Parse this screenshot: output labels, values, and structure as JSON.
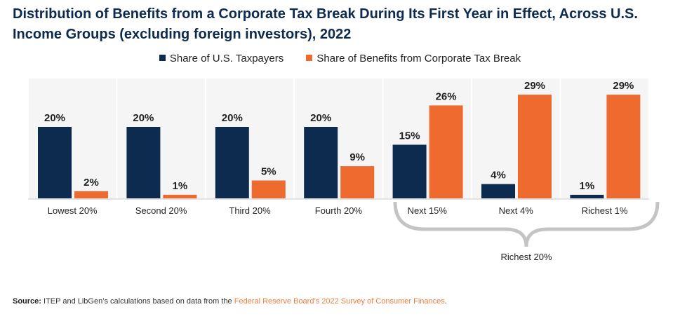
{
  "chart_data": {
    "type": "bar",
    "title": "Distribution of Benefits from a Corporate Tax Break During Its First Year in Effect, Across U.S. Income Groups (excluding foreign investors), 2022",
    "categories": [
      "Lowest 20%",
      "Second 20%",
      "Third 20%",
      "Fourth 20%",
      "Next 15%",
      "Next 4%",
      "Richest 1%"
    ],
    "series": [
      {
        "name": "Share of U.S. Taxpayers",
        "color": "#0d2b4e",
        "values": [
          20,
          20,
          20,
          20,
          15,
          4,
          1
        ]
      },
      {
        "name": "Share of Benefits from Corporate Tax Break",
        "color": "#ee6a2f",
        "values": [
          2,
          1,
          5,
          9,
          26,
          29,
          29
        ]
      }
    ],
    "value_suffix": "%",
    "ylim": [
      0,
      30
    ],
    "legend_position": "top-center",
    "annotation": {
      "label": "Richest 20%",
      "spans": [
        "Next 15%",
        "Next 4%",
        "Richest 1%"
      ]
    }
  },
  "source": {
    "label": "Source:",
    "text": " ITEP and LibGen’s calculations based on data from the ",
    "link": "Federal Reserve Board’s 2022 Survey of Consumer Finances",
    "end": "."
  }
}
